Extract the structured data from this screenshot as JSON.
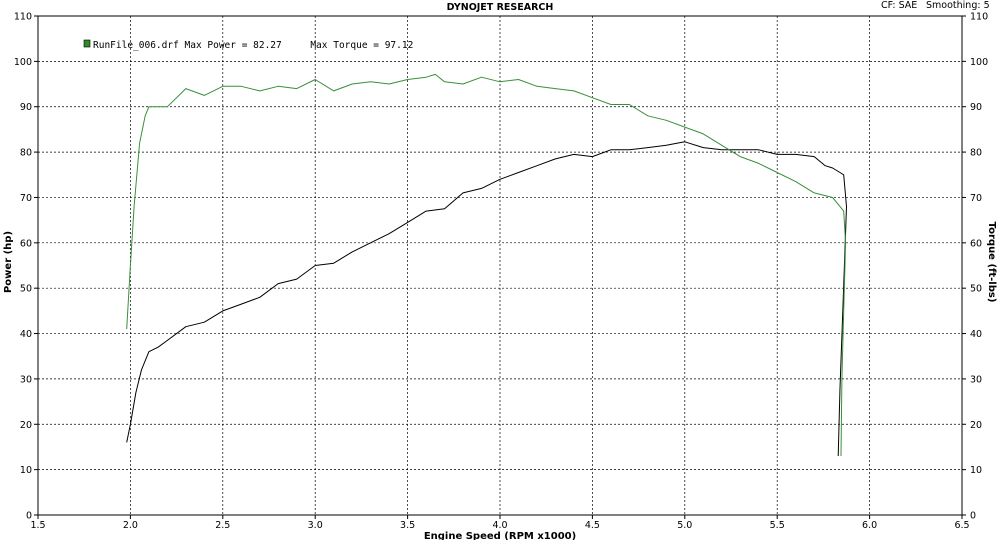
{
  "header": {
    "title": "DYNOJET RESEARCH",
    "cf_label": "CF: SAE",
    "smoothing_label": "Smoothing: 5"
  },
  "legend": {
    "text": "RunFile_006.drf Max Power = 82.27     Max Torque = 97.12",
    "color": "#2e8b2e"
  },
  "chart_data": {
    "type": "line",
    "title": "DYNOJET RESEARCH",
    "xlabel": "Engine Speed (RPM x1000)",
    "ylabel_left": "Power (hp)",
    "ylabel_right": "Torque (ft-lbs)",
    "xlim": [
      1.5,
      6.5
    ],
    "ylim": [
      0,
      110
    ],
    "x_ticks": [
      "1.5",
      "2.0",
      "2.5",
      "3.0",
      "3.5",
      "4.0",
      "4.5",
      "5.0",
      "5.5",
      "6.0",
      "6.5"
    ],
    "y_ticks": [
      "0",
      "10",
      "20",
      "30",
      "40",
      "50",
      "60",
      "70",
      "80",
      "90",
      "100",
      "110"
    ],
    "grid": true,
    "max_power": 82.27,
    "max_torque": 97.12,
    "series": [
      {
        "name": "Power",
        "axis": "left",
        "color": "#000000",
        "points": [
          [
            1.98,
            16
          ],
          [
            2.0,
            20
          ],
          [
            2.03,
            27
          ],
          [
            2.06,
            32
          ],
          [
            2.1,
            36
          ],
          [
            2.15,
            37
          ],
          [
            2.2,
            38.5
          ],
          [
            2.3,
            41.5
          ],
          [
            2.4,
            42.5
          ],
          [
            2.5,
            45
          ],
          [
            2.6,
            46.5
          ],
          [
            2.7,
            48
          ],
          [
            2.8,
            51
          ],
          [
            2.9,
            52
          ],
          [
            3.0,
            55
          ],
          [
            3.1,
            55.5
          ],
          [
            3.2,
            58
          ],
          [
            3.3,
            60
          ],
          [
            3.4,
            62
          ],
          [
            3.5,
            64.5
          ],
          [
            3.6,
            67
          ],
          [
            3.7,
            67.5
          ],
          [
            3.8,
            71
          ],
          [
            3.9,
            72
          ],
          [
            4.0,
            74
          ],
          [
            4.1,
            75.5
          ],
          [
            4.2,
            77
          ],
          [
            4.3,
            78.5
          ],
          [
            4.4,
            79.5
          ],
          [
            4.5,
            79
          ],
          [
            4.6,
            80.5
          ],
          [
            4.7,
            80.5
          ],
          [
            4.8,
            81
          ],
          [
            4.9,
            81.5
          ],
          [
            5.0,
            82.27
          ],
          [
            5.1,
            81
          ],
          [
            5.2,
            80.5
          ],
          [
            5.3,
            80.5
          ],
          [
            5.4,
            80.5
          ],
          [
            5.5,
            79.5
          ],
          [
            5.6,
            79.5
          ],
          [
            5.7,
            79
          ],
          [
            5.76,
            77
          ],
          [
            5.8,
            76.5
          ],
          [
            5.84,
            75.5
          ],
          [
            5.86,
            75
          ],
          [
            5.875,
            68
          ],
          [
            5.855,
            45
          ],
          [
            5.84,
            28
          ],
          [
            5.83,
            13
          ]
        ]
      },
      {
        "name": "Torque",
        "axis": "right",
        "color": "#3a8f3a",
        "points": [
          [
            1.98,
            41
          ],
          [
            2.0,
            55
          ],
          [
            2.02,
            68
          ],
          [
            2.05,
            82
          ],
          [
            2.08,
            88
          ],
          [
            2.1,
            90
          ],
          [
            2.2,
            90
          ],
          [
            2.3,
            94
          ],
          [
            2.4,
            92.5
          ],
          [
            2.5,
            94.5
          ],
          [
            2.6,
            94.5
          ],
          [
            2.7,
            93.5
          ],
          [
            2.8,
            94.5
          ],
          [
            2.9,
            94
          ],
          [
            3.0,
            96
          ],
          [
            3.1,
            93.5
          ],
          [
            3.2,
            95
          ],
          [
            3.3,
            95.5
          ],
          [
            3.4,
            95
          ],
          [
            3.5,
            96
          ],
          [
            3.6,
            96.5
          ],
          [
            3.65,
            97.12
          ],
          [
            3.7,
            95.5
          ],
          [
            3.8,
            95
          ],
          [
            3.9,
            96.5
          ],
          [
            4.0,
            95.5
          ],
          [
            4.1,
            96
          ],
          [
            4.2,
            94.5
          ],
          [
            4.3,
            94
          ],
          [
            4.4,
            93.5
          ],
          [
            4.5,
            92
          ],
          [
            4.6,
            90.5
          ],
          [
            4.7,
            90.5
          ],
          [
            4.8,
            88
          ],
          [
            4.9,
            87
          ],
          [
            5.0,
            85.5
          ],
          [
            5.1,
            84
          ],
          [
            5.2,
            81.5
          ],
          [
            5.3,
            79
          ],
          [
            5.4,
            77.5
          ],
          [
            5.5,
            75.5
          ],
          [
            5.6,
            73.5
          ],
          [
            5.7,
            71
          ],
          [
            5.8,
            70
          ],
          [
            5.83,
            68.5
          ],
          [
            5.86,
            67
          ],
          [
            5.87,
            60
          ],
          [
            5.86,
            45
          ],
          [
            5.85,
            30
          ],
          [
            5.845,
            13
          ]
        ]
      }
    ]
  }
}
